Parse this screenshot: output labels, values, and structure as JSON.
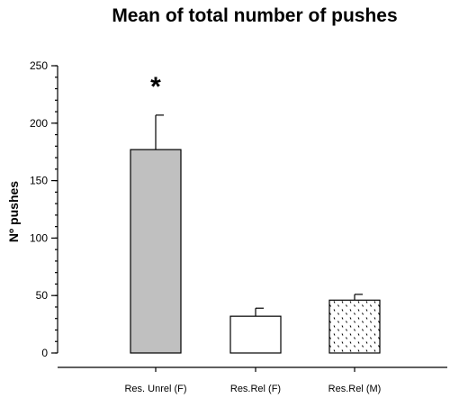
{
  "chart_data": {
    "type": "bar",
    "title": "Mean of total number of pushes",
    "xlabel": "",
    "ylabel": "Nº pushes",
    "ylim": [
      0,
      250
    ],
    "yticks": [
      0,
      50,
      100,
      150,
      200,
      250
    ],
    "minor_tick_step": 10,
    "grid": false,
    "categories": [
      "Res. Unrel (F)",
      "Res.Rel (F)",
      "Res.Rel (M)"
    ],
    "values": [
      177,
      32,
      46
    ],
    "error_upper": [
      207,
      39,
      51
    ],
    "bar_fills": [
      "gray",
      "white",
      "dotted-pattern"
    ],
    "colors": {
      "gray": "#c0c0c0",
      "white": "#ffffff",
      "dots": "#000000"
    },
    "annotations": [
      {
        "text": "*",
        "category": "Res. Unrel (F)",
        "y": 235
      }
    ]
  }
}
